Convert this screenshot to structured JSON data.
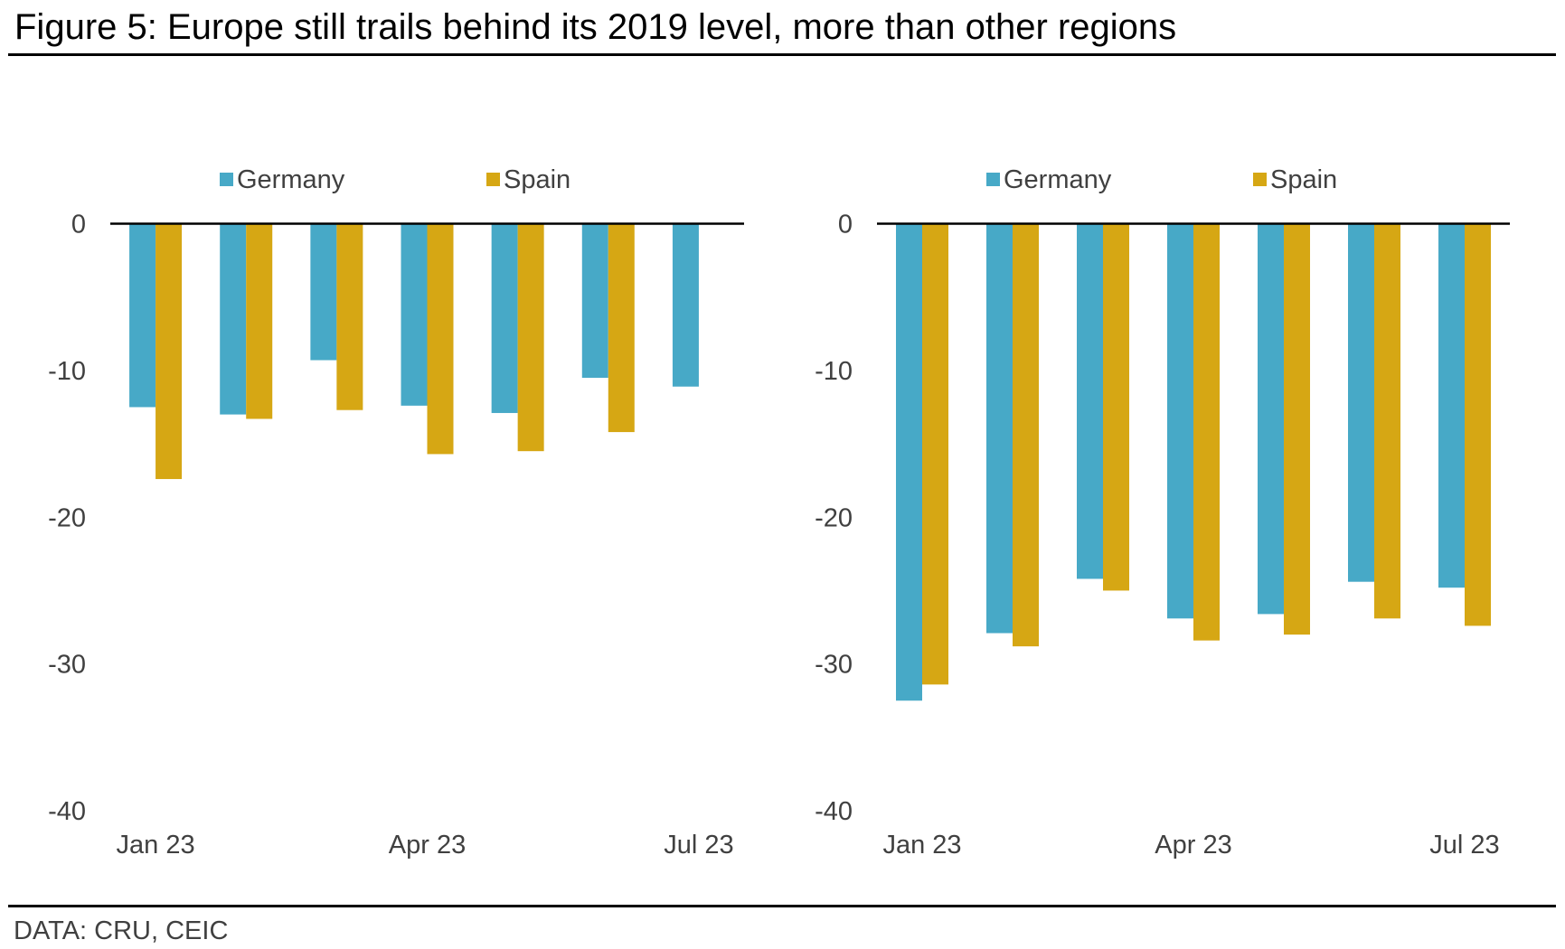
{
  "title": "Figure 5: Europe still trails behind its 2019 level, more than other regions",
  "source": "DATA: CRU, CEIC",
  "colors": {
    "Germany": "#47A9C7",
    "Spain": "#D6A714",
    "axis": "#000000",
    "text": "#404040"
  },
  "chart_data": [
    {
      "type": "bar",
      "title": "",
      "xlabel": "",
      "ylabel": "",
      "legend": [
        "Germany",
        "Spain"
      ],
      "legend_position": "top",
      "grid": false,
      "ylim": [
        -40,
        0
      ],
      "yticks": [
        0,
        -10,
        -20,
        -30,
        -40
      ],
      "ytick_labels": [
        "0",
        "-10",
        "-20",
        "-30",
        "-40"
      ],
      "categories": [
        "Jan 23",
        "Feb 23",
        "Mar 23",
        "Apr 23",
        "May 23",
        "Jun 23",
        "Jul 23"
      ],
      "xtick_labels": [
        {
          "index": 0,
          "label": "Jan 23"
        },
        {
          "index": 3,
          "label": "Apr 23"
        },
        {
          "index": 6,
          "label": "Jul 23"
        }
      ],
      "series": [
        {
          "name": "Germany",
          "values": [
            -12.5,
            -13.0,
            -9.3,
            -12.4,
            -12.9,
            -10.5,
            -11.1
          ]
        },
        {
          "name": "Spain",
          "values": [
            -17.4,
            -13.3,
            -12.7,
            -15.7,
            -15.5,
            -14.2,
            null
          ]
        }
      ]
    },
    {
      "type": "bar",
      "title": "",
      "xlabel": "",
      "ylabel": "",
      "legend": [
        "Germany",
        "Spain"
      ],
      "legend_position": "top",
      "grid": false,
      "ylim": [
        -40,
        0
      ],
      "yticks": [
        0,
        -10,
        -20,
        -30,
        -40
      ],
      "ytick_labels": [
        "0",
        "-10",
        "-20",
        "-30",
        "-40"
      ],
      "categories": [
        "Jan 23",
        "Feb 23",
        "Mar 23",
        "Apr 23",
        "May 23",
        "Jun 23",
        "Jul 23"
      ],
      "xtick_labels": [
        {
          "index": 0,
          "label": "Jan 23"
        },
        {
          "index": 3,
          "label": "Apr 23"
        },
        {
          "index": 6,
          "label": "Jul 23"
        }
      ],
      "series": [
        {
          "name": "Germany",
          "values": [
            -32.5,
            -27.9,
            -24.2,
            -26.9,
            -26.6,
            -24.4,
            -24.8
          ]
        },
        {
          "name": "Spain",
          "values": [
            -31.4,
            -28.8,
            -25.0,
            -28.4,
            -28.0,
            -26.9,
            -27.4
          ]
        }
      ]
    }
  ]
}
